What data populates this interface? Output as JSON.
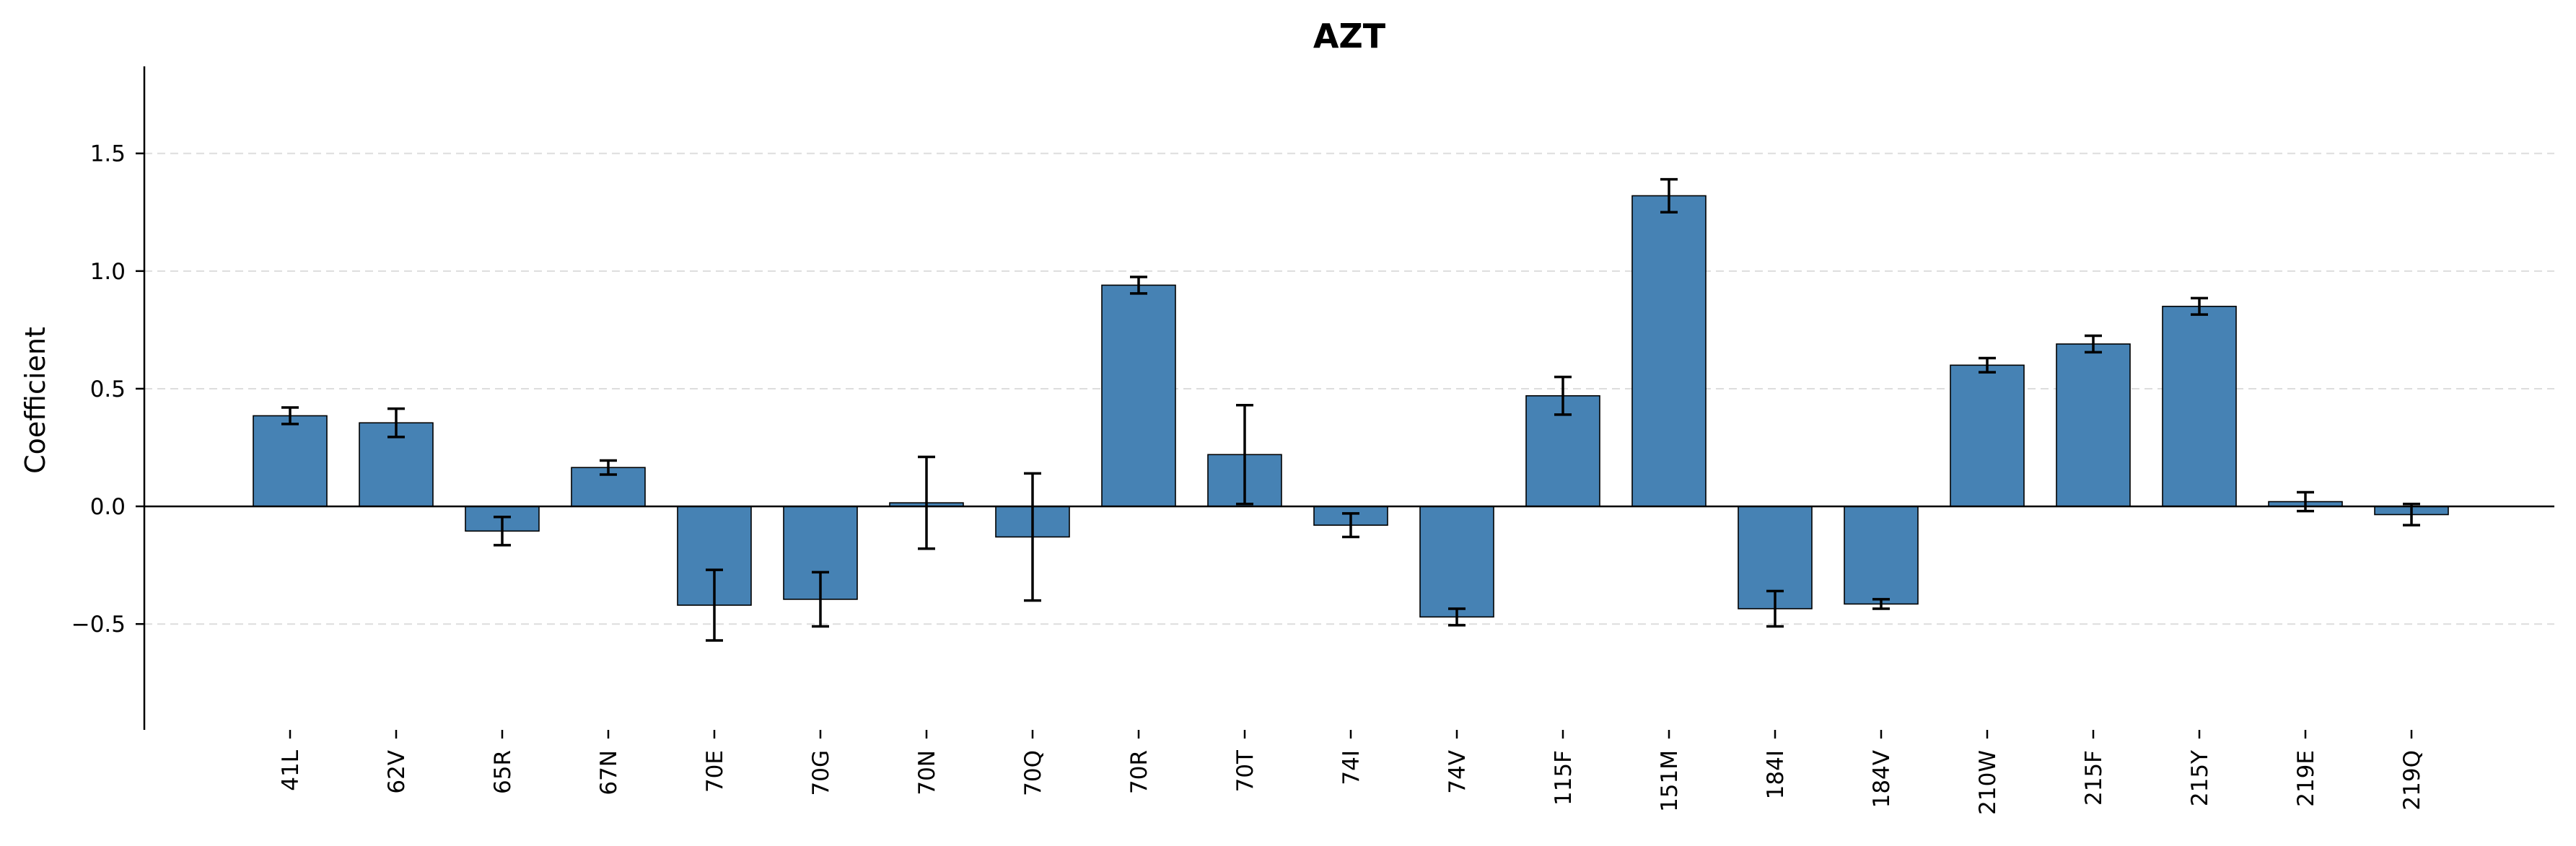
{
  "chart_data": {
    "type": "bar",
    "title": "AZT",
    "xlabel": "",
    "ylabel": "Coefficient",
    "ylim": [
      -0.95,
      1.87
    ],
    "yticks": [
      -0.5,
      0.0,
      0.5,
      1.0,
      1.5
    ],
    "ytick_labels": [
      "−0.5",
      "0.0",
      "0.5",
      "1.0",
      "1.5"
    ],
    "grid": "y-dashed",
    "bar_color": "#4682b4",
    "categories": [
      "41L",
      "62V",
      "65R",
      "67N",
      "70E",
      "70G",
      "70N",
      "70Q",
      "70R",
      "70T",
      "74I",
      "74V",
      "115F",
      "151M",
      "184I",
      "184V",
      "210W",
      "215F",
      "215Y",
      "219E",
      "219Q"
    ],
    "values": [
      0.385,
      0.355,
      -0.105,
      0.165,
      -0.42,
      -0.395,
      0.015,
      -0.13,
      0.94,
      0.22,
      -0.08,
      -0.47,
      0.47,
      1.32,
      -0.435,
      -0.415,
      0.6,
      0.69,
      0.85,
      0.02,
      -0.035
    ],
    "errors": [
      0.035,
      0.06,
      0.06,
      0.03,
      0.15,
      0.115,
      0.195,
      0.27,
      0.035,
      0.21,
      0.05,
      0.035,
      0.08,
      0.07,
      0.075,
      0.02,
      0.03,
      0.035,
      0.035,
      0.04,
      0.045
    ]
  }
}
